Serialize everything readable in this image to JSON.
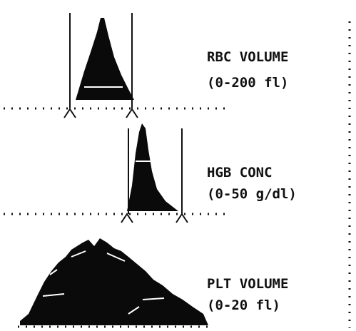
{
  "panels": [
    {
      "name": "RBC VOLUME",
      "range": "(0-200 fl)"
    },
    {
      "name": "HGB CONC",
      "range": "(0-50 g/dl)"
    },
    {
      "name": "PLT VOLUME",
      "range": "(0-20 fl)"
    }
  ]
}
